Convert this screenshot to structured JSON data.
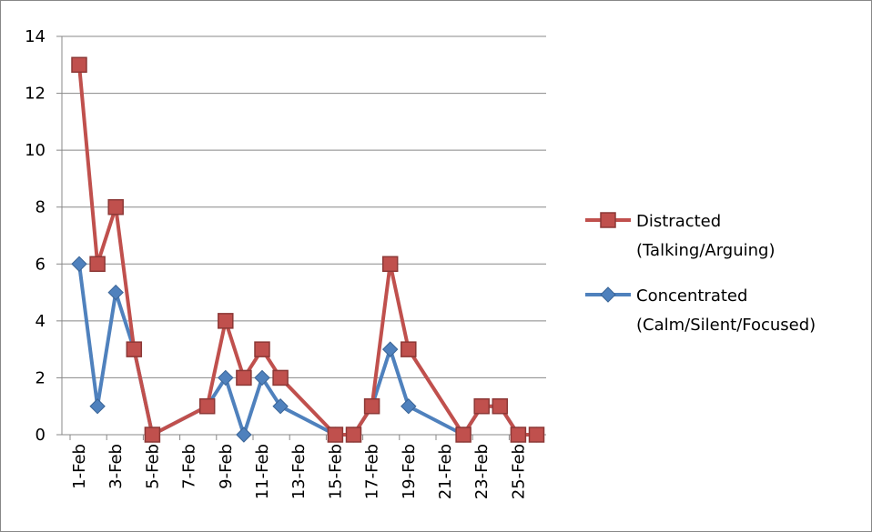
{
  "chart_data": {
    "type": "line",
    "x": [
      "1-Feb",
      "2-Feb",
      "3-Feb",
      "4-Feb",
      "5-Feb",
      "8-Feb",
      "9-Feb",
      "10-Feb",
      "11-Feb",
      "12-Feb",
      "15-Feb",
      "16-Feb",
      "17-Feb",
      "18-Feb",
      "19-Feb",
      "22-Feb",
      "23-Feb",
      "24-Feb",
      "25-Feb",
      "26-Feb"
    ],
    "series": [
      {
        "name": "Concentrated (Calm/Silent/Focused)",
        "color": "#4f81bd",
        "marker": "diamond",
        "values": [
          6,
          1,
          5,
          3,
          0,
          1,
          2,
          0,
          2,
          1,
          0,
          0,
          1,
          3,
          1,
          0,
          1,
          1,
          0,
          0
        ]
      },
      {
        "name": "Distracted (Talking/Arguing)",
        "color": "#c0504d",
        "marker": "square",
        "values": [
          13,
          6,
          8,
          3,
          0,
          1,
          4,
          2,
          3,
          2,
          0,
          0,
          1,
          6,
          3,
          0,
          1,
          1,
          0,
          0
        ]
      }
    ],
    "xticks": [
      "1-Feb",
      "3-Feb",
      "5-Feb",
      "7-Feb",
      "9-Feb",
      "11-Feb",
      "13-Feb",
      "15-Feb",
      "17-Feb",
      "19-Feb",
      "21-Feb",
      "23-Feb",
      "25-Feb"
    ],
    "ylim": [
      0,
      14
    ],
    "yticks": [
      0,
      2,
      4,
      6,
      8,
      10,
      12,
      14
    ],
    "grid": true,
    "legend": "right"
  }
}
